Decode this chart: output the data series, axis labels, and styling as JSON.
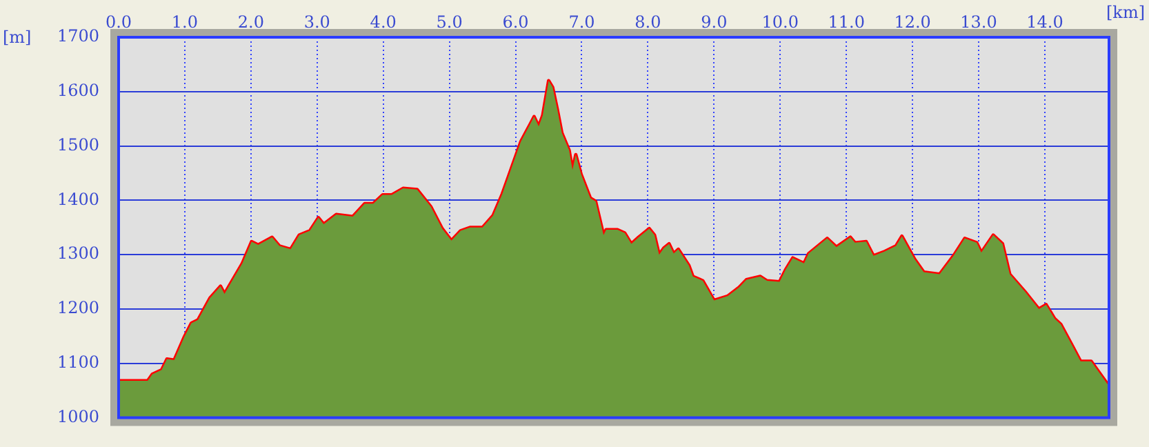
{
  "chart_data": {
    "type": "area",
    "xlabel": "[km]",
    "ylabel": "[m]",
    "xlim": [
      0,
      14.97
    ],
    "ylim": [
      1000,
      1700
    ],
    "xticks": [
      {
        "value": 0,
        "label": "0.0"
      },
      {
        "value": 1,
        "label": "1.0"
      },
      {
        "value": 2,
        "label": "2.0"
      },
      {
        "value": 3,
        "label": "3.0"
      },
      {
        "value": 4,
        "label": "4.0"
      },
      {
        "value": 5,
        "label": "5.0"
      },
      {
        "value": 6,
        "label": "6.0"
      },
      {
        "value": 7,
        "label": "7.0"
      },
      {
        "value": 8,
        "label": "8.0"
      },
      {
        "value": 9,
        "label": "9.0"
      },
      {
        "value": 10,
        "label": "10.0"
      },
      {
        "value": 11,
        "label": "11.0"
      },
      {
        "value": 12,
        "label": "12.0"
      },
      {
        "value": 13,
        "label": "13.0"
      },
      {
        "value": 14,
        "label": "14.0"
      }
    ],
    "yticks": [
      1000,
      1100,
      1200,
      1300,
      1400,
      1500,
      1600,
      1700
    ],
    "grid": true,
    "legend": false,
    "series": [
      {
        "color": "#6b9b3c",
        "x": [
          0,
          0.44,
          0.51,
          0.65,
          0.73,
          0.84,
          0.99,
          1.1,
          1.2,
          1.38,
          1.54,
          1.6,
          1.87,
          2.01,
          2.11,
          2.32,
          2.43,
          2.6,
          2.73,
          2.89,
          3.02,
          3.1,
          3.29,
          3.54,
          3.72,
          3.85,
          3.99,
          4.13,
          4.3,
          4.51,
          4.72,
          4.89,
          5.03,
          5.17,
          5.31,
          5.5,
          5.66,
          5.8,
          5.94,
          6.08,
          6.22,
          6.28,
          6.35,
          6.41,
          6.5,
          6.56,
          6.63,
          6.7,
          6.81,
          6.86,
          6.91,
          6.99,
          7.13,
          7.21,
          7.33,
          7.37,
          7.54,
          7.65,
          7.75,
          7.86,
          8.02,
          8.1,
          8.17,
          8.24,
          8.32,
          8.39,
          8.46,
          8.62,
          8.68,
          8.83,
          9.0,
          9.21,
          9.38,
          9.49,
          9.7,
          9.8,
          9.99,
          10.08,
          10.19,
          10.36,
          10.43,
          10.71,
          10.85,
          11.06,
          11.13,
          11.3,
          11.41,
          11.58,
          11.75,
          11.84,
          12.03,
          12.17,
          12.41,
          12.62,
          12.79,
          12.97,
          13.04,
          13.22,
          13.36,
          13.47,
          13.7,
          13.91,
          14.02,
          14.15,
          14.24,
          14.4,
          14.54,
          14.7,
          14.97
        ],
        "values": [
          1068,
          1068,
          1080,
          1088,
          1108,
          1106,
          1148,
          1174,
          1180,
          1220,
          1242,
          1228,
          1284,
          1324,
          1318,
          1332,
          1316,
          1310,
          1336,
          1344,
          1368,
          1356,
          1374,
          1370,
          1394,
          1394,
          1410,
          1410,
          1422,
          1420,
          1388,
          1348,
          1326,
          1344,
          1350,
          1350,
          1372,
          1412,
          1460,
          1508,
          1540,
          1554,
          1536,
          1556,
          1620,
          1608,
          1568,
          1524,
          1492,
          1456,
          1484,
          1448,
          1404,
          1398,
          1336,
          1346,
          1346,
          1340,
          1320,
          1332,
          1348,
          1336,
          1300,
          1312,
          1320,
          1302,
          1310,
          1280,
          1260,
          1252,
          1216,
          1224,
          1240,
          1254,
          1260,
          1252,
          1250,
          1272,
          1294,
          1284,
          1302,
          1330,
          1314,
          1332,
          1322,
          1324,
          1298,
          1306,
          1316,
          1334,
          1292,
          1268,
          1264,
          1298,
          1330,
          1322,
          1304,
          1336,
          1320,
          1264,
          1232,
          1200,
          1208,
          1182,
          1172,
          1136,
          1104,
          1104,
          1058
        ]
      },
      {
        "type": "line",
        "color": "#ff0000",
        "x": [
          0,
          0.44,
          0.51,
          0.65,
          0.73,
          0.84,
          0.99,
          1.1,
          1.2,
          1.38,
          1.54,
          1.6,
          1.87,
          2.01,
          2.11,
          2.32,
          2.43,
          2.6,
          2.73,
          2.89,
          3.02,
          3.1,
          3.29,
          3.54,
          3.72,
          3.85,
          3.99,
          4.13,
          4.3,
          4.51,
          4.72,
          4.89,
          5.03,
          5.17,
          5.31,
          5.5,
          5.66,
          5.8,
          5.94,
          6.08,
          6.22,
          6.28,
          6.35,
          6.41,
          6.5,
          6.56,
          6.63,
          6.7,
          6.81,
          6.86,
          6.91,
          6.99,
          7.13,
          7.21,
          7.33,
          7.37,
          7.54,
          7.65,
          7.75,
          7.86,
          8.02,
          8.1,
          8.17,
          8.24,
          8.32,
          8.39,
          8.46,
          8.62,
          8.68,
          8.83,
          9.0,
          9.21,
          9.38,
          9.49,
          9.7,
          9.8,
          9.99,
          10.08,
          10.19,
          10.36,
          10.43,
          10.71,
          10.85,
          11.06,
          11.13,
          11.3,
          11.41,
          11.58,
          11.75,
          11.84,
          12.03,
          12.17,
          12.41,
          12.62,
          12.79,
          12.97,
          13.04,
          13.22,
          13.36,
          13.47,
          13.7,
          13.91,
          14.02,
          14.15,
          14.24,
          14.4,
          14.54,
          14.7,
          14.97
        ],
        "values": [
          1068,
          1068,
          1080,
          1088,
          1108,
          1106,
          1148,
          1174,
          1180,
          1220,
          1242,
          1228,
          1284,
          1324,
          1318,
          1332,
          1316,
          1310,
          1336,
          1344,
          1368,
          1356,
          1374,
          1370,
          1394,
          1394,
          1410,
          1410,
          1422,
          1420,
          1388,
          1348,
          1326,
          1344,
          1350,
          1350,
          1372,
          1412,
          1460,
          1508,
          1540,
          1554,
          1536,
          1556,
          1620,
          1608,
          1568,
          1524,
          1492,
          1456,
          1484,
          1448,
          1404,
          1398,
          1336,
          1346,
          1346,
          1340,
          1320,
          1332,
          1348,
          1336,
          1300,
          1312,
          1320,
          1302,
          1310,
          1280,
          1260,
          1252,
          1216,
          1224,
          1240,
          1254,
          1260,
          1252,
          1250,
          1272,
          1294,
          1284,
          1302,
          1330,
          1314,
          1332,
          1322,
          1324,
          1298,
          1306,
          1316,
          1334,
          1292,
          1268,
          1264,
          1298,
          1330,
          1322,
          1304,
          1336,
          1320,
          1264,
          1232,
          1200,
          1208,
          1182,
          1172,
          1136,
          1104,
          1104,
          1058
        ]
      }
    ]
  }
}
